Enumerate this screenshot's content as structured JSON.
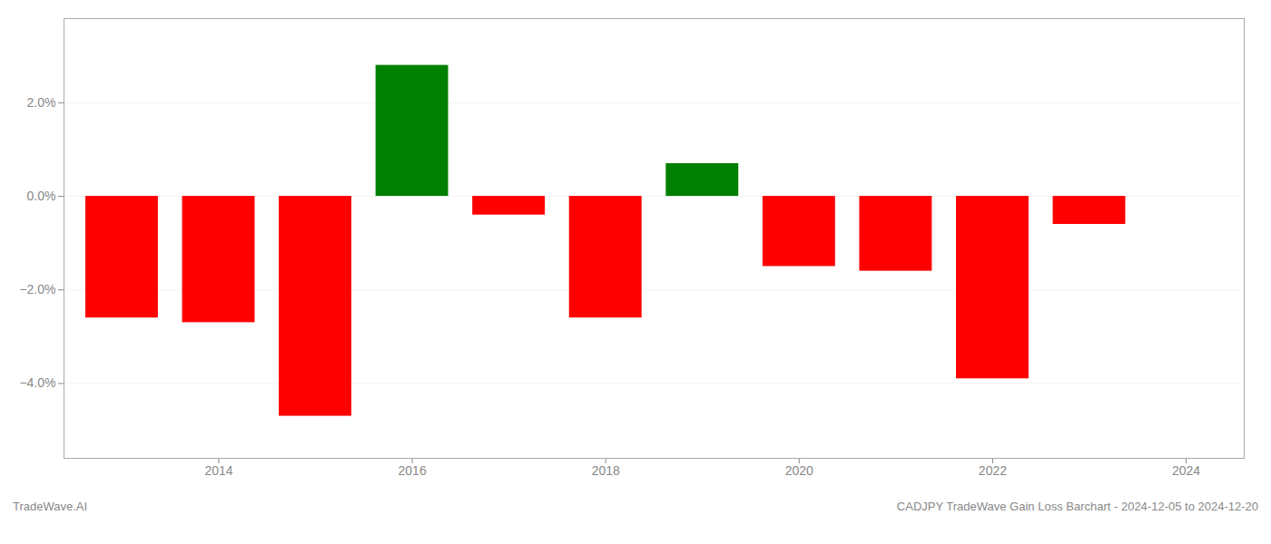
{
  "chart_data": {
    "type": "bar",
    "title": "CADJPY TradeWave Gain Loss Barchart - 2024-12-05 to 2024-12-20",
    "annotations": [
      "TradeWave.AI"
    ],
    "x": [
      2013,
      2014,
      2015,
      2016,
      2017,
      2018,
      2019,
      2020,
      2021,
      2022,
      2023
    ],
    "values": [
      -0.026,
      -0.027,
      -0.047,
      0.028,
      -0.004,
      -0.026,
      0.007,
      -0.015,
      -0.016,
      -0.039,
      -0.006
    ],
    "colors": [
      "#ff0000",
      "#ff0000",
      "#ff0000",
      "#008000",
      "#ff0000",
      "#ff0000",
      "#008000",
      "#ff0000",
      "#ff0000",
      "#ff0000",
      "#ff0000"
    ],
    "xlim": [
      2012.4,
      2024.6
    ],
    "xticks": [
      2014,
      2016,
      2018,
      2020,
      2022,
      2024
    ],
    "ylim": [
      -0.056,
      0.038
    ],
    "yticks": [
      {
        "value": 0.02,
        "label": "2.0%"
      },
      {
        "value": 0.0,
        "label": "0.0%"
      },
      {
        "value": -0.02,
        "label": "−2.0%"
      },
      {
        "value": -0.04,
        "label": "−4.0%"
      }
    ],
    "grid": true
  }
}
